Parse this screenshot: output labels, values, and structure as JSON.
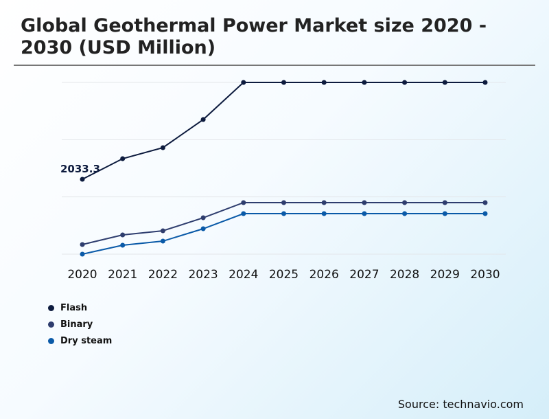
{
  "chart_data": {
    "type": "line",
    "title": "Global Geothermal Power Market size 2020 - 2030 (USD Million)",
    "x": [
      "2020",
      "2021",
      "2022",
      "2023",
      "2024",
      "2025",
      "2026",
      "2027",
      "2028",
      "2029",
      "2030"
    ],
    "series": [
      {
        "name": "Flash",
        "color": "#0d1b3e",
        "values": [
          2033.3,
          2592,
          2891,
          3655,
          4663,
          4663,
          4663,
          4663,
          4663,
          4663,
          4663
        ]
      },
      {
        "name": "Binary",
        "color": "#2e3d6e",
        "values": [
          261,
          522,
          634,
          988,
          1399,
          1399,
          1399,
          1399,
          1399,
          1399,
          1399
        ]
      },
      {
        "name": "Dry steam",
        "color": "#0a5aa8",
        "values": [
          0,
          242,
          354,
          690,
          1100,
          1100,
          1100,
          1100,
          1100,
          1100,
          1100
        ]
      }
    ],
    "annotations": [
      {
        "series": "Flash",
        "x": "2020",
        "label": "2033.3"
      }
    ],
    "ylim": [
      0,
      4663
    ],
    "grid": true,
    "legend": "bottom-left"
  },
  "source": "Source: technavio.com"
}
